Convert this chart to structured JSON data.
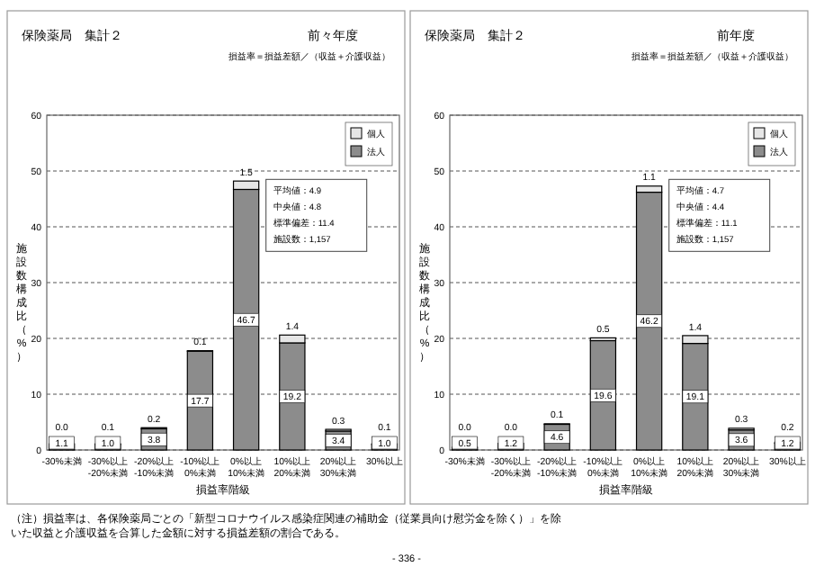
{
  "chart_data": [
    {
      "type": "bar",
      "stacked": true,
      "title": "保険薬局　集計２",
      "subtitle": "前々年度",
      "xlabel": "損益率階級",
      "ylabel": "施設数構成比（%）",
      "categories": [
        "-30%未満",
        "-30%以上\n-20%未満",
        "-20%以上\n-10%未満",
        "-10%以上\n0%未満",
        "0%以上\n10%未満",
        "10%以上\n20%未満",
        "20%以上\n30%未満",
        "30%以上"
      ],
      "series": [
        {
          "name": "法人",
          "color": "#8c8c8c",
          "values": [
            1.1,
            1.0,
            3.8,
            17.7,
            46.7,
            19.2,
            3.4,
            1.0
          ],
          "value_labels": [
            "1.1",
            "1.0",
            "3.8",
            "17.7",
            "46.7",
            "19.2",
            "3.4",
            "1.0"
          ]
        },
        {
          "name": "個人",
          "color": "#e6e6e6",
          "values": [
            0.0,
            0.1,
            0.2,
            0.1,
            1.5,
            1.4,
            0.3,
            0.1
          ],
          "value_labels": [
            "0.0",
            "0.1",
            "0.2",
            "0.1",
            "1.5",
            "1.4",
            "0.3",
            "0.1"
          ]
        }
      ],
      "ylim": [
        0,
        60
      ],
      "yticks": [
        0,
        10,
        20,
        30,
        40,
        50,
        60
      ],
      "grid": "y",
      "legend": "top right",
      "annotations": [
        "損益率＝損益差額／（収益＋介護収益）",
        "平均値：4.9",
        "中央値：4.8",
        "標準偏差：11.4",
        "施設数：1,157"
      ]
    },
    {
      "type": "bar",
      "stacked": true,
      "title": "保険薬局　集計２",
      "subtitle": "前年度",
      "xlabel": "損益率階級",
      "ylabel": "施設数構成比（%）",
      "categories": [
        "-30%未満",
        "-30%以上\n-20%未満",
        "-20%以上\n-10%未満",
        "-10%以上\n0%未満",
        "0%以上\n10%未満",
        "10%以上\n20%未満",
        "20%以上\n30%未満",
        "30%以上"
      ],
      "series": [
        {
          "name": "法人",
          "color": "#8c8c8c",
          "values": [
            0.5,
            1.2,
            4.6,
            19.6,
            46.2,
            19.1,
            3.6,
            1.2
          ],
          "value_labels": [
            "0.5",
            "1.2",
            "4.6",
            "19.6",
            "46.2",
            "19.1",
            "3.6",
            "1.2"
          ]
        },
        {
          "name": "個人",
          "color": "#e6e6e6",
          "values": [
            0.0,
            0.0,
            0.1,
            0.5,
            1.1,
            1.4,
            0.3,
            0.2
          ],
          "value_labels": [
            "0.0",
            "0.0",
            "0.1",
            "0.5",
            "1.1",
            "1.4",
            "0.3",
            "0.2"
          ]
        }
      ],
      "ylim": [
        0,
        60
      ],
      "yticks": [
        0,
        10,
        20,
        30,
        40,
        50,
        60
      ],
      "grid": "y",
      "legend": "top right",
      "annotations": [
        "損益率＝損益差額／（収益＋介護収益）",
        "平均値：4.7",
        "中央値：4.4",
        "標準偏差：11.1",
        "施設数：1,157",
        "（注）損益率は、各保険薬局ごとの「新型コロナウイルス感染症関連の補助金（従業員向け慰労金を除く）」を除いた収益と介護収益を合算した金額に対する損益差額の割合である。",
        "- 336 -"
      ]
    }
  ]
}
